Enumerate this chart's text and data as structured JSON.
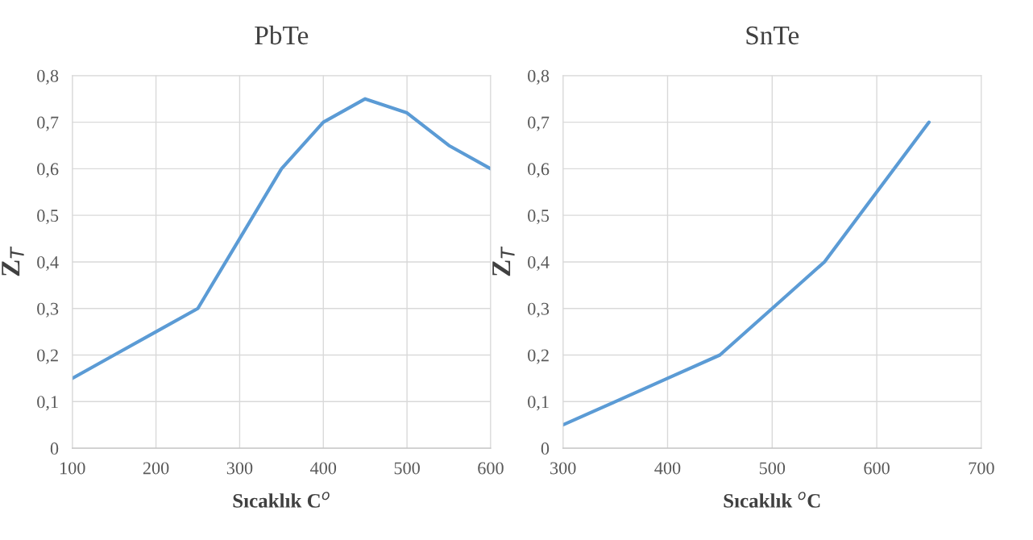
{
  "chart_data": [
    {
      "type": "line",
      "title": "PbTe",
      "xlabel": "Sıcaklık C$^{o}$",
      "ylabel": "Z$_{T}$",
      "x": [
        100,
        150,
        200,
        250,
        300,
        350,
        400,
        450,
        500,
        550,
        600
      ],
      "series": [
        {
          "color": "#5b9bd5",
          "values": [
            0.15,
            0.2,
            0.25,
            0.3,
            0.45,
            0.6,
            0.7,
            0.75,
            0.72,
            0.65,
            0.6
          ]
        }
      ],
      "xlim": [
        100,
        600
      ],
      "xticks": [
        100,
        200,
        300,
        400,
        500,
        600
      ],
      "ylim": [
        0,
        0.8
      ],
      "yticks": [
        {
          "value": 0,
          "label": "0"
        },
        {
          "value": 0.1,
          "label": "0,1"
        },
        {
          "value": 0.2,
          "label": "0,2"
        },
        {
          "value": 0.3,
          "label": "0,3"
        },
        {
          "value": 0.4,
          "label": "0,4"
        },
        {
          "value": 0.5,
          "label": "0,5"
        },
        {
          "value": 0.6,
          "label": "0,6"
        },
        {
          "value": 0.7,
          "label": "0,7"
        },
        {
          "value": 0.8,
          "label": "0,8"
        }
      ],
      "grid": true,
      "marker": "none",
      "line_style": "solid"
    },
    {
      "type": "line",
      "title": "SnTe",
      "xlabel": "Sıcaklık $^{o}$C",
      "ylabel": "Z$_{T}$",
      "x": [
        300,
        350,
        400,
        450,
        500,
        550,
        600,
        650
      ],
      "series": [
        {
          "color": "#5b9bd5",
          "values": [
            0.05,
            0.1,
            0.15,
            0.2,
            0.3,
            0.4,
            0.55,
            0.7
          ]
        }
      ],
      "xlim": [
        300,
        700
      ],
      "xticks": [
        300,
        400,
        500,
        600,
        700
      ],
      "ylim": [
        0,
        0.8
      ],
      "yticks": [
        {
          "value": 0,
          "label": "0"
        },
        {
          "value": 0.1,
          "label": "0,1"
        },
        {
          "value": 0.2,
          "label": "0,2"
        },
        {
          "value": 0.3,
          "label": "0,3"
        },
        {
          "value": 0.4,
          "label": "0,4"
        },
        {
          "value": 0.5,
          "label": "0,5"
        },
        {
          "value": 0.6,
          "label": "0,6"
        },
        {
          "value": 0.7,
          "label": "0,7"
        },
        {
          "value": 0.8,
          "label": "0,8"
        }
      ],
      "grid": true,
      "marker": "none",
      "line_style": "solid"
    }
  ]
}
